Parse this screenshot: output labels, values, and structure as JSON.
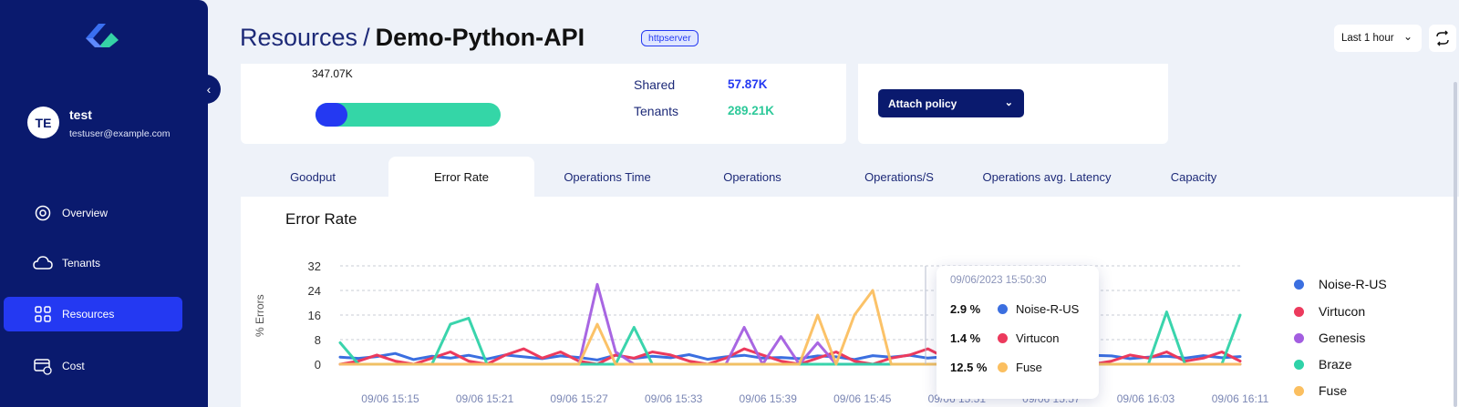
{
  "sidebar": {
    "user": {
      "initials": "TE",
      "name": "test",
      "email": "testuser@example.com"
    },
    "items": [
      {
        "label": "Overview",
        "icon": "overview-icon",
        "active": false
      },
      {
        "label": "Tenants",
        "icon": "cloud-icon",
        "active": false
      },
      {
        "label": "Resources",
        "icon": "grid-icon",
        "active": true
      },
      {
        "label": "Cost",
        "icon": "bill-icon",
        "active": false
      }
    ]
  },
  "header": {
    "breadcrumb_root": "Resources",
    "breadcrumb_sep": "/",
    "breadcrumb_current": "Demo-Python-API",
    "tag": "httpserver",
    "time_range": "Last 1 hour"
  },
  "summary": {
    "total": "347.07K",
    "usage_fraction": 0.17,
    "stats": [
      {
        "label": "Shared",
        "value": "57.87K",
        "color": "#2439f2"
      },
      {
        "label": "Tenants",
        "value": "289.21K",
        "color": "#2ec99a"
      }
    ],
    "policy_button": "Attach policy"
  },
  "tabs": [
    "Goodput",
    "Error Rate",
    "Operations Time",
    "Operations",
    "Operations/S",
    "Operations avg. Latency",
    "Capacity"
  ],
  "active_tab": "Error Rate",
  "chart_panel": {
    "title": "Error Rate"
  },
  "chart_data": {
    "type": "line",
    "title": "Error Rate",
    "ylabel": "% Errors",
    "ylim": [
      0,
      32
    ],
    "yticks": [
      0,
      8,
      16,
      24,
      32
    ],
    "xticks": [
      "09/06 15:15",
      "09/06 15:21",
      "09/06 15:27",
      "09/06 15:33",
      "09/06 15:39",
      "09/06 15:45",
      "09/06 15:51",
      "09/06 15:57",
      "09/06 16:03",
      "09/06 16:11"
    ],
    "grid": true,
    "legend_position": "right",
    "series": [
      {
        "name": "Noise-R-US",
        "color": "#3b6fe0",
        "values": [
          2.3,
          1.9,
          2.5,
          3.5,
          1.5,
          2.6,
          2.0,
          2.9,
          1.7,
          3.0,
          2.4,
          1.8,
          2.7,
          2.2,
          1.4,
          2.9,
          1.9,
          2.6,
          2.1,
          3.1,
          1.6,
          2.4,
          2.9,
          2.0,
          2.2,
          1.8,
          2.7,
          2.4,
          1.5,
          2.8,
          2.3,
          2.9,
          2.0,
          2.5,
          1.7,
          2.6,
          2.1,
          3.0,
          1.9,
          2.4,
          2.2,
          2.9,
          2.7,
          1.8,
          2.3,
          2.6,
          2.0,
          2.8,
          2.1,
          2.5
        ]
      },
      {
        "name": "Virtucon",
        "color": "#ec3a5d",
        "values": [
          0,
          1,
          3,
          1,
          0,
          2,
          4,
          1,
          0,
          3,
          5,
          2,
          4,
          1,
          0,
          3,
          2,
          4,
          3,
          1,
          0,
          2,
          5,
          3,
          1,
          0,
          2,
          4,
          1,
          0,
          2,
          3,
          5,
          2,
          1,
          0,
          3,
          4,
          1,
          2,
          4,
          0,
          1,
          3,
          2,
          4,
          1,
          2,
          4,
          1
        ]
      },
      {
        "name": "Genesis",
        "color": "#a35ee0",
        "values": [
          0,
          0,
          0,
          0,
          0,
          0,
          0,
          0,
          0,
          0,
          0,
          0,
          0,
          0,
          26,
          4,
          0,
          0,
          0,
          0,
          0,
          0,
          12,
          0,
          9,
          0,
          7,
          0,
          0,
          0,
          0,
          0,
          0,
          0,
          0,
          0,
          0,
          0,
          0,
          0,
          0,
          0,
          0,
          0,
          0,
          0,
          0,
          0,
          0,
          0
        ]
      },
      {
        "name": "Braze",
        "color": "#2fd2a8",
        "values": [
          7,
          0,
          0,
          0,
          0,
          0,
          13,
          15,
          0,
          0,
          0,
          0,
          0,
          0,
          0,
          0,
          12,
          0,
          0,
          0,
          0,
          0,
          0,
          0,
          0,
          0,
          0,
          0,
          0,
          0,
          0,
          0,
          0,
          0,
          0,
          0,
          0,
          0,
          0,
          0,
          0,
          0,
          0,
          0,
          0,
          17,
          0,
          0,
          0,
          16
        ]
      },
      {
        "name": "Fuse",
        "color": "#fbbf60",
        "values": [
          0,
          0,
          0,
          0,
          0,
          0,
          0,
          0,
          0,
          0,
          0,
          0,
          0,
          0,
          13,
          0,
          0,
          0,
          0,
          0,
          0,
          0,
          0,
          0,
          0,
          0,
          16,
          0,
          16,
          24,
          0,
          0,
          0,
          0,
          0,
          0,
          0,
          0,
          0,
          0,
          17,
          0,
          0,
          0,
          0,
          0,
          0,
          0,
          0,
          0
        ]
      }
    ]
  },
  "tooltip": {
    "timestamp": "09/06/2023 15:50:30",
    "rows": [
      {
        "pct": "2.9 %",
        "name": "Noise-R-US",
        "color": "#3b6fe0"
      },
      {
        "pct": "1.4 %",
        "name": "Virtucon",
        "color": "#ec3a5d"
      },
      {
        "pct": "12.5 %",
        "name": "Fuse",
        "color": "#fbbf60"
      }
    ]
  }
}
